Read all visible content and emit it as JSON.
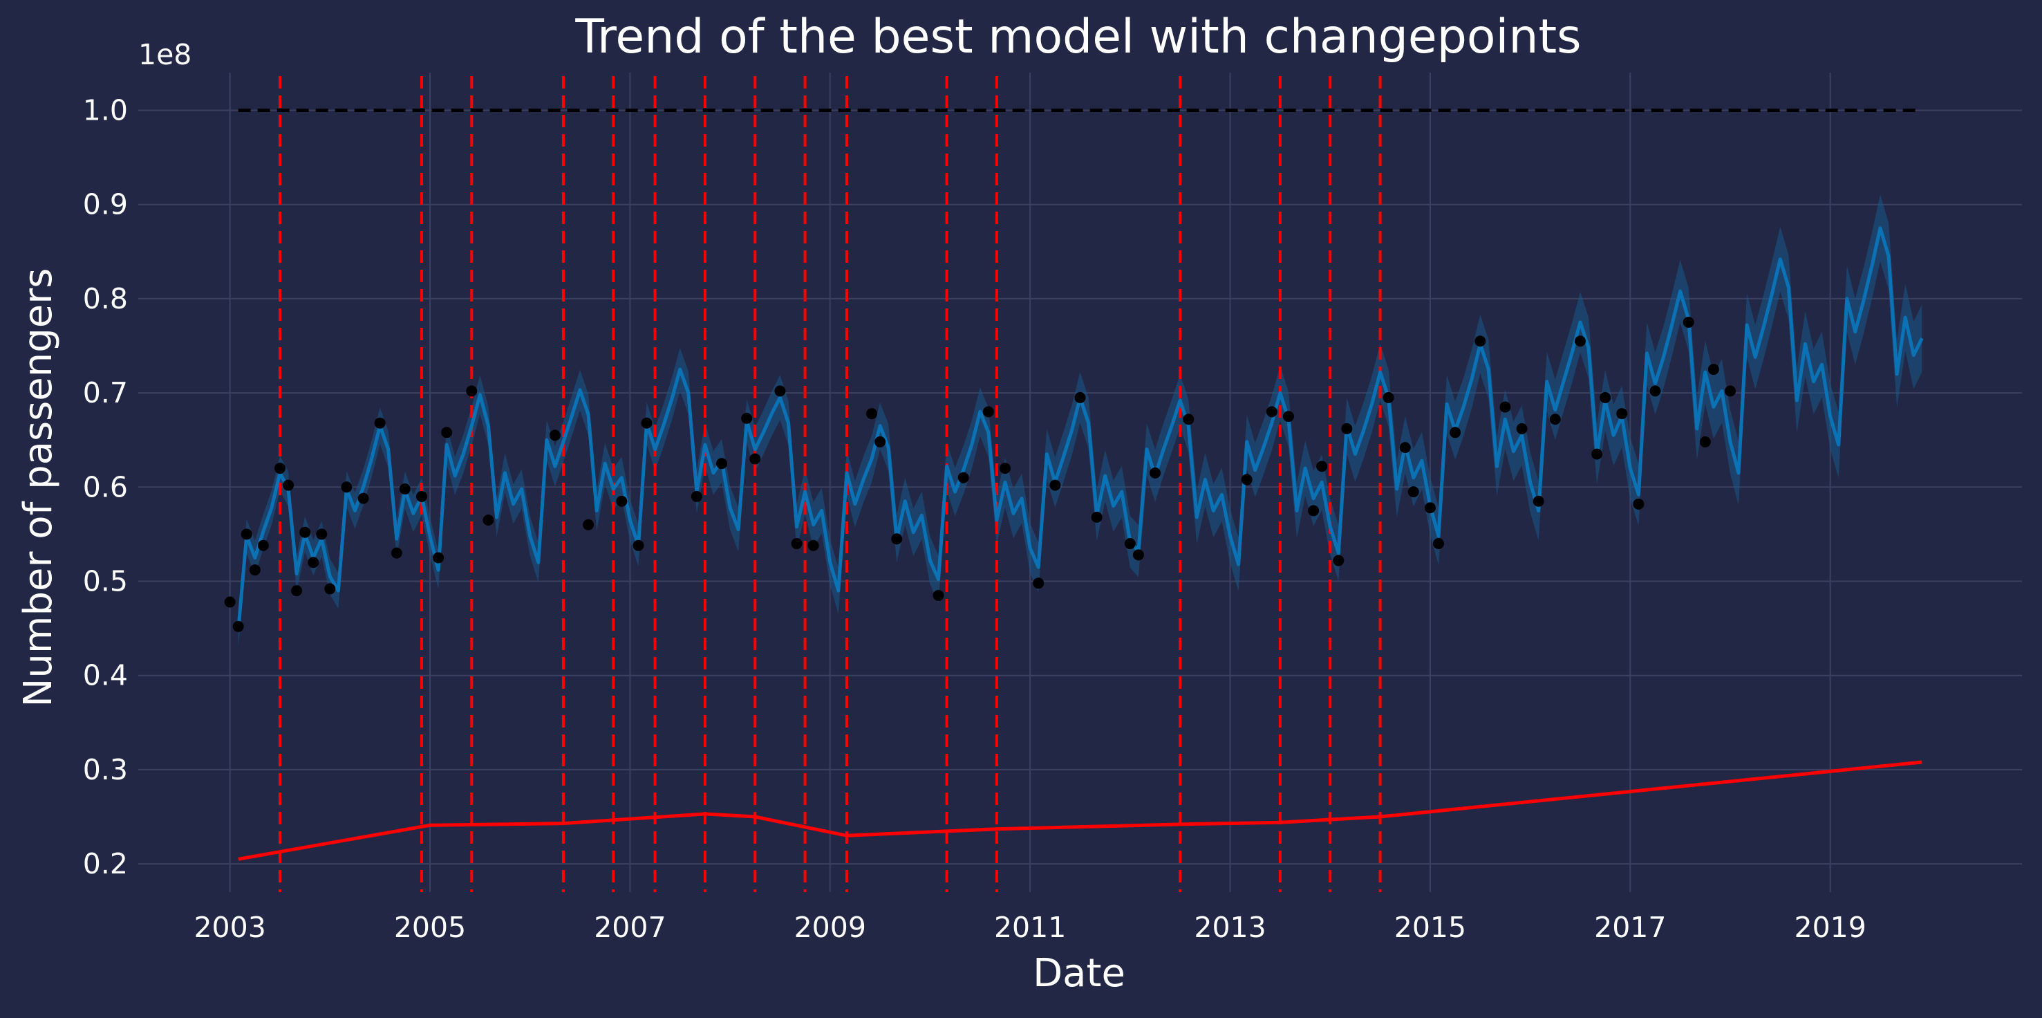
{
  "chart_data": {
    "type": "line",
    "title": "Trend of the best model with changepoints",
    "xlabel": "Date",
    "ylabel": "Number of passengers",
    "y_offset_text": "1e8",
    "xlim": [
      "2002-02-01",
      "2020-12-01"
    ],
    "ylim": [
      0.17,
      1.04
    ],
    "x_ticks": [
      "2003",
      "2005",
      "2007",
      "2009",
      "2011",
      "2013",
      "2015",
      "2017",
      "2019"
    ],
    "y_ticks": [
      "0.2",
      "0.3",
      "0.4",
      "0.5",
      "0.6",
      "0.7",
      "0.8",
      "0.9",
      "1.0"
    ],
    "grid": true,
    "colors": {
      "background": "#212744",
      "grid": "#3b4160",
      "forecast": "#0b72b5",
      "interval": "#1a5a8c",
      "observed": "#000000",
      "cap": "#000000",
      "trend": "#ff0000",
      "changepoint": "#ff0000",
      "text": "#ffffff"
    },
    "cap": {
      "value": 1.0,
      "start": "2003-02-01",
      "end": "2019-12-01"
    },
    "changepoints": [
      "2003-07-01",
      "2004-12-01",
      "2005-06-01",
      "2006-05-01",
      "2006-11-01",
      "2007-04-01",
      "2007-10-01",
      "2008-04-01",
      "2008-10-01",
      "2009-03-01",
      "2010-03-01",
      "2010-09-01",
      "2012-07-01",
      "2013-07-01",
      "2014-01-01",
      "2014-07-01"
    ],
    "trend": {
      "x": [
        "2003-02-01",
        "2005-01-01",
        "2006-05-01",
        "2007-10-01",
        "2008-04-01",
        "2009-03-01",
        "2010-09-01",
        "2012-07-01",
        "2013-07-01",
        "2014-07-01",
        "2019-12-01"
      ],
      "y": [
        0.205,
        0.241,
        0.243,
        0.253,
        0.25,
        0.23,
        0.237,
        0.242,
        0.244,
        0.25,
        0.308
      ]
    },
    "forecast_start": "2003-02-01",
    "forecast": [
      0.448,
      0.548,
      0.525,
      0.553,
      0.578,
      0.615,
      0.598,
      0.508,
      0.55,
      0.525,
      0.545,
      0.505,
      0.49,
      0.598,
      0.575,
      0.6,
      0.63,
      0.665,
      0.64,
      0.545,
      0.597,
      0.572,
      0.59,
      0.548,
      0.512,
      0.645,
      0.612,
      0.635,
      0.665,
      0.698,
      0.665,
      0.568,
      0.615,
      0.582,
      0.598,
      0.548,
      0.52,
      0.65,
      0.622,
      0.648,
      0.675,
      0.703,
      0.677,
      0.575,
      0.625,
      0.598,
      0.61,
      0.565,
      0.538,
      0.668,
      0.64,
      0.665,
      0.693,
      0.725,
      0.7,
      0.595,
      0.645,
      0.615,
      0.628,
      0.578,
      0.555,
      0.67,
      0.64,
      0.658,
      0.678,
      0.695,
      0.668,
      0.558,
      0.595,
      0.56,
      0.575,
      0.52,
      0.49,
      0.615,
      0.582,
      0.608,
      0.63,
      0.665,
      0.642,
      0.545,
      0.585,
      0.552,
      0.57,
      0.522,
      0.502,
      0.622,
      0.595,
      0.618,
      0.645,
      0.68,
      0.658,
      0.565,
      0.605,
      0.572,
      0.588,
      0.535,
      0.515,
      0.635,
      0.605,
      0.632,
      0.66,
      0.695,
      0.668,
      0.57,
      0.612,
      0.58,
      0.595,
      0.542,
      0.532,
      0.64,
      0.612,
      0.64,
      0.665,
      0.692,
      0.665,
      0.568,
      0.608,
      0.575,
      0.592,
      0.548,
      0.518,
      0.648,
      0.618,
      0.642,
      0.668,
      0.7,
      0.672,
      0.575,
      0.62,
      0.588,
      0.605,
      0.558,
      0.53,
      0.665,
      0.635,
      0.66,
      0.688,
      0.722,
      0.695,
      0.598,
      0.645,
      0.61,
      0.628,
      0.58,
      0.548,
      0.688,
      0.66,
      0.685,
      0.715,
      0.752,
      0.725,
      0.622,
      0.672,
      0.638,
      0.655,
      0.605,
      0.575,
      0.712,
      0.682,
      0.712,
      0.742,
      0.775,
      0.748,
      0.635,
      0.692,
      0.655,
      0.675,
      0.62,
      0.592,
      0.742,
      0.71,
      0.738,
      0.772,
      0.808,
      0.778,
      0.662,
      0.722,
      0.685,
      0.702,
      0.648,
      0.615,
      0.772,
      0.738,
      0.77,
      0.805,
      0.842,
      0.812,
      0.692,
      0.752,
      0.712,
      0.73,
      0.675,
      0.645,
      0.8,
      0.765,
      0.798,
      0.835,
      0.875,
      0.845,
      0.72,
      0.78,
      0.74,
      0.758
    ],
    "interval_halfwidth": 0.018,
    "observed": [
      {
        "x": "2003-01-01",
        "y": 0.478
      },
      {
        "x": "2003-02-01",
        "y": 0.452
      },
      {
        "x": "2003-03-01",
        "y": 0.55
      },
      {
        "x": "2003-04-01",
        "y": 0.512
      },
      {
        "x": "2003-05-01",
        "y": 0.538
      },
      {
        "x": "2003-07-01",
        "y": 0.62
      },
      {
        "x": "2003-08-01",
        "y": 0.602
      },
      {
        "x": "2003-09-01",
        "y": 0.49
      },
      {
        "x": "2003-10-01",
        "y": 0.552
      },
      {
        "x": "2003-11-01",
        "y": 0.52
      },
      {
        "x": "2003-12-01",
        "y": 0.55
      },
      {
        "x": "2004-01-01",
        "y": 0.492
      },
      {
        "x": "2004-03-01",
        "y": 0.6
      },
      {
        "x": "2004-05-01",
        "y": 0.588
      },
      {
        "x": "2004-07-01",
        "y": 0.668
      },
      {
        "x": "2004-09-01",
        "y": 0.53
      },
      {
        "x": "2004-10-01",
        "y": 0.598
      },
      {
        "x": "2004-12-01",
        "y": 0.59
      },
      {
        "x": "2005-02-01",
        "y": 0.525
      },
      {
        "x": "2005-03-01",
        "y": 0.658
      },
      {
        "x": "2005-06-01",
        "y": 0.702
      },
      {
        "x": "2005-08-01",
        "y": 0.565
      },
      {
        "x": "2006-04-01",
        "y": 0.655
      },
      {
        "x": "2006-08-01",
        "y": 0.56
      },
      {
        "x": "2006-12-01",
        "y": 0.585
      },
      {
        "x": "2007-02-01",
        "y": 0.538
      },
      {
        "x": "2007-03-01",
        "y": 0.668
      },
      {
        "x": "2007-09-01",
        "y": 0.59
      },
      {
        "x": "2007-12-01",
        "y": 0.625
      },
      {
        "x": "2008-03-01",
        "y": 0.673
      },
      {
        "x": "2008-04-01",
        "y": 0.63
      },
      {
        "x": "2008-07-01",
        "y": 0.702
      },
      {
        "x": "2008-09-01",
        "y": 0.54
      },
      {
        "x": "2008-11-01",
        "y": 0.538
      },
      {
        "x": "2009-06-01",
        "y": 0.678
      },
      {
        "x": "2009-07-01",
        "y": 0.648
      },
      {
        "x": "2009-09-01",
        "y": 0.545
      },
      {
        "x": "2010-02-01",
        "y": 0.485
      },
      {
        "x": "2010-05-01",
        "y": 0.61
      },
      {
        "x": "2010-08-01",
        "y": 0.68
      },
      {
        "x": "2010-10-01",
        "y": 0.62
      },
      {
        "x": "2011-02-01",
        "y": 0.498
      },
      {
        "x": "2011-04-01",
        "y": 0.602
      },
      {
        "x": "2011-07-01",
        "y": 0.695
      },
      {
        "x": "2011-09-01",
        "y": 0.568
      },
      {
        "x": "2012-01-01",
        "y": 0.54
      },
      {
        "x": "2012-02-01",
        "y": 0.528
      },
      {
        "x": "2012-04-01",
        "y": 0.615
      },
      {
        "x": "2012-08-01",
        "y": 0.672
      },
      {
        "x": "2013-03-01",
        "y": 0.608
      },
      {
        "x": "2013-06-01",
        "y": 0.68
      },
      {
        "x": "2013-08-01",
        "y": 0.675
      },
      {
        "x": "2013-11-01",
        "y": 0.575
      },
      {
        "x": "2013-12-01",
        "y": 0.622
      },
      {
        "x": "2014-02-01",
        "y": 0.522
      },
      {
        "x": "2014-03-01",
        "y": 0.662
      },
      {
        "x": "2014-08-01",
        "y": 0.695
      },
      {
        "x": "2014-10-01",
        "y": 0.642
      },
      {
        "x": "2014-11-01",
        "y": 0.595
      },
      {
        "x": "2015-01-01",
        "y": 0.578
      },
      {
        "x": "2015-02-01",
        "y": 0.54
      },
      {
        "x": "2015-04-01",
        "y": 0.658
      },
      {
        "x": "2015-07-01",
        "y": 0.755
      },
      {
        "x": "2015-10-01",
        "y": 0.685
      },
      {
        "x": "2015-12-01",
        "y": 0.662
      },
      {
        "x": "2016-02-01",
        "y": 0.585
      },
      {
        "x": "2016-04-01",
        "y": 0.672
      },
      {
        "x": "2016-07-01",
        "y": 0.755
      },
      {
        "x": "2016-09-01",
        "y": 0.635
      },
      {
        "x": "2016-10-01",
        "y": 0.695
      },
      {
        "x": "2016-12-01",
        "y": 0.678
      },
      {
        "x": "2017-02-01",
        "y": 0.582
      },
      {
        "x": "2017-04-01",
        "y": 0.702
      },
      {
        "x": "2017-08-01",
        "y": 0.775
      },
      {
        "x": "2017-10-01",
        "y": 0.648
      },
      {
        "x": "2017-11-01",
        "y": 0.725
      },
      {
        "x": "2018-01-01",
        "y": 0.702
      }
    ]
  }
}
